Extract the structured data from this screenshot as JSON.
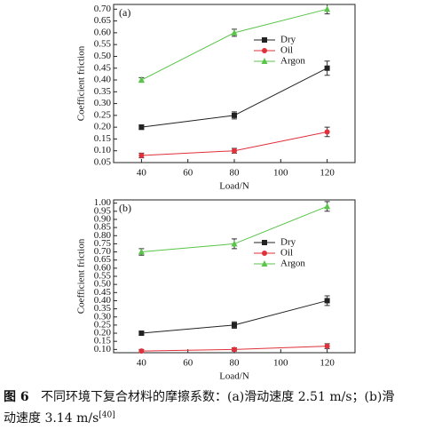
{
  "chart_data": [
    {
      "type": "line",
      "panel_label": "(a)",
      "x_label": "Load/N",
      "y_label": "Coefficient friction",
      "x": [
        40,
        80,
        120
      ],
      "xlim": [
        28,
        132
      ],
      "xticks": [
        40,
        60,
        80,
        100,
        120
      ],
      "ylim": [
        0.05,
        0.72
      ],
      "yticks": [
        0.05,
        {
          "value": 0.1,
          "label": "0.10"
        },
        0.15,
        {
          "value": 0.2,
          "label": "0.20"
        },
        0.25,
        {
          "value": 0.3,
          "label": "0.30"
        },
        0.35,
        {
          "value": 0.4,
          "label": "0.40"
        },
        0.45,
        {
          "value": 0.5,
          "label": "0.50"
        },
        0.55,
        {
          "value": 0.6,
          "label": "0.60"
        },
        0.65,
        {
          "value": 0.7,
          "label": "0.70"
        }
      ],
      "legend": "upper right",
      "grid": false,
      "series": [
        {
          "name": "Dry",
          "color": "#222222",
          "marker": "square",
          "values": [
            0.2,
            0.25,
            0.45
          ],
          "errors": [
            0.01,
            0.015,
            0.03
          ]
        },
        {
          "name": "Oil",
          "color": "#e0303a",
          "marker": "circle",
          "values": [
            0.08,
            0.1,
            0.18
          ],
          "errors": [
            0.01,
            0.01,
            0.02
          ]
        },
        {
          "name": "Argon",
          "color": "#58c448",
          "marker": "triangle",
          "values": [
            0.4,
            0.6,
            0.7
          ],
          "errors": [
            0.01,
            0.015,
            0.02
          ]
        }
      ]
    },
    {
      "type": "line",
      "panel_label": "(b)",
      "x_label": "Load/N",
      "y_label": "Coefficient friction",
      "x": [
        40,
        80,
        120
      ],
      "xlim": [
        28,
        132
      ],
      "xticks": [
        40,
        60,
        80,
        100,
        120
      ],
      "ylim": [
        0.08,
        1.02
      ],
      "yticks": [
        {
          "value": 0.1,
          "label": "0.10"
        },
        0.15,
        {
          "value": 0.2,
          "label": "0.20"
        },
        0.25,
        {
          "value": 0.3,
          "label": "0.30"
        },
        0.35,
        {
          "value": 0.4,
          "label": "0.40"
        },
        0.45,
        {
          "value": 0.5,
          "label": "0.50"
        },
        0.55,
        {
          "value": 0.6,
          "label": "0.60"
        },
        0.65,
        {
          "value": 0.7,
          "label": "0.70"
        },
        0.75,
        {
          "value": 0.8,
          "label": "0.80"
        },
        0.85,
        {
          "value": 0.9,
          "label": "0.90"
        },
        0.95,
        {
          "value": 1.0,
          "label": "1.00"
        }
      ],
      "legend": "center right",
      "grid": false,
      "series": [
        {
          "name": "Dry",
          "color": "#222222",
          "marker": "square",
          "values": [
            0.2,
            0.25,
            0.4
          ],
          "errors": [
            0.01,
            0.02,
            0.03
          ]
        },
        {
          "name": "Oil",
          "color": "#e0303a",
          "marker": "circle",
          "values": [
            0.09,
            0.1,
            0.12
          ],
          "errors": [
            0.01,
            0.01,
            0.015
          ]
        },
        {
          "name": "Argon",
          "color": "#58c448",
          "marker": "triangle",
          "values": [
            0.7,
            0.75,
            0.98
          ],
          "errors": [
            0.02,
            0.03,
            0.03
          ]
        }
      ]
    }
  ],
  "caption": {
    "label": "图 6",
    "line1": "不同环境下复合材料的摩擦系数：(a)滑动速度 2.51 m/s；(b)滑",
    "line2": "动速度 3.14 m/s",
    "ref": "[40]"
  }
}
